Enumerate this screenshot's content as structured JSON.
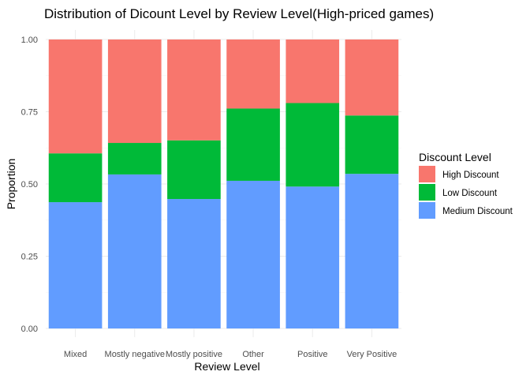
{
  "chart_data": {
    "type": "bar",
    "stacked": true,
    "title": "Distribution of Dicount Level by Review Level(High-priced games)",
    "xlabel": "Review Level",
    "ylabel": "Proportion",
    "ylim": [
      0,
      1
    ],
    "yticks": [
      "0.00",
      "0.25",
      "0.50",
      "0.75",
      "1.00"
    ],
    "categories": [
      "Mixed",
      "Mostly negative",
      "Mostly positive",
      "Other",
      "Positive",
      "Very Positive"
    ],
    "series": [
      {
        "name": "Medium Discount",
        "color": "#619CFF",
        "values": [
          0.437,
          0.533,
          0.448,
          0.511,
          0.491,
          0.535
        ]
      },
      {
        "name": "Low Discount",
        "color": "#00BA38",
        "values": [
          0.169,
          0.109,
          0.203,
          0.25,
          0.289,
          0.202
        ]
      },
      {
        "name": "High Discount",
        "color": "#F8766D",
        "values": [
          0.394,
          0.358,
          0.349,
          0.239,
          0.22,
          0.263
        ]
      }
    ],
    "legend": {
      "title": "Discount Level",
      "position": "right",
      "items": [
        "High Discount",
        "Low Discount",
        "Medium Discount"
      ]
    }
  }
}
